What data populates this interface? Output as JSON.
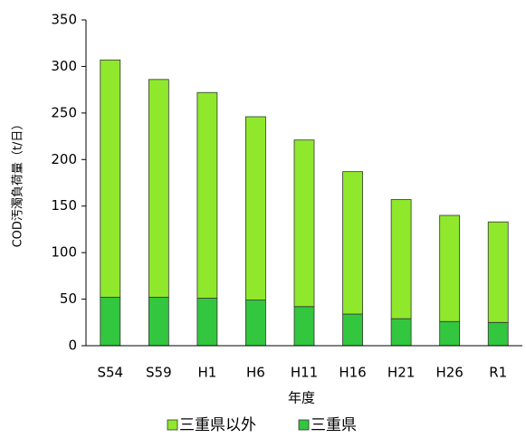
{
  "chart_data": {
    "type": "stacked_bar",
    "y_label": "COD汚濁負荷量（t/日）",
    "x_label": "年度",
    "categories": [
      "S54",
      "S59",
      "H1",
      "H6",
      "H11",
      "H16",
      "H21",
      "H26",
      "R1"
    ],
    "series": [
      {
        "name": "三重県以外",
        "color": "#8fe82c",
        "values": [
          255,
          234,
          221,
          197,
          179,
          153,
          128,
          114,
          108
        ]
      },
      {
        "name": "三重県",
        "color": "#33c63f",
        "values": [
          52,
          52,
          51,
          49,
          42,
          34,
          29,
          26,
          25
        ]
      }
    ],
    "ylim": [
      0,
      350
    ],
    "yticks": [
      0,
      50,
      100,
      150,
      200,
      250,
      300,
      350
    ],
    "grid": false
  }
}
